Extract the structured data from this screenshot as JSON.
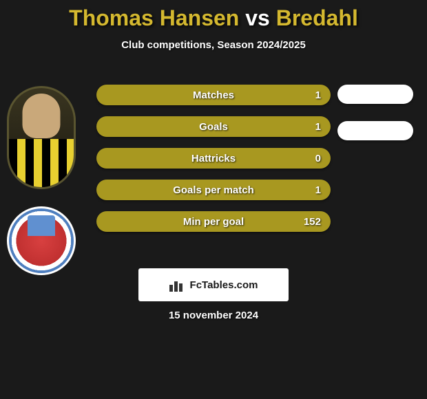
{
  "header": {
    "player1": "Thomas Hansen",
    "vs": "vs",
    "player2": "Bredahl"
  },
  "subtitle": "Club competitions, Season 2024/2025",
  "stats": [
    {
      "label": "Matches",
      "value": "1",
      "has_right_pill": true
    },
    {
      "label": "Goals",
      "value": "1",
      "has_right_pill": true
    },
    {
      "label": "Hattricks",
      "value": "0",
      "has_right_pill": false
    },
    {
      "label": "Goals per match",
      "value": "1",
      "has_right_pill": false
    },
    {
      "label": "Min per goal",
      "value": "152",
      "has_right_pill": false
    }
  ],
  "styling": {
    "stat_row_bg": "#a89820",
    "stat_row_height": 30,
    "stat_row_gap": 16,
    "stat_text_color": "#ffffff",
    "right_pill_bg": "#ffffff",
    "background": "#1a1a1a",
    "title_color_accent": "#d4b82f",
    "title_color_vs": "#ffffff"
  },
  "footer": {
    "brand": "FcTables.com",
    "date": "15 november 2024"
  }
}
